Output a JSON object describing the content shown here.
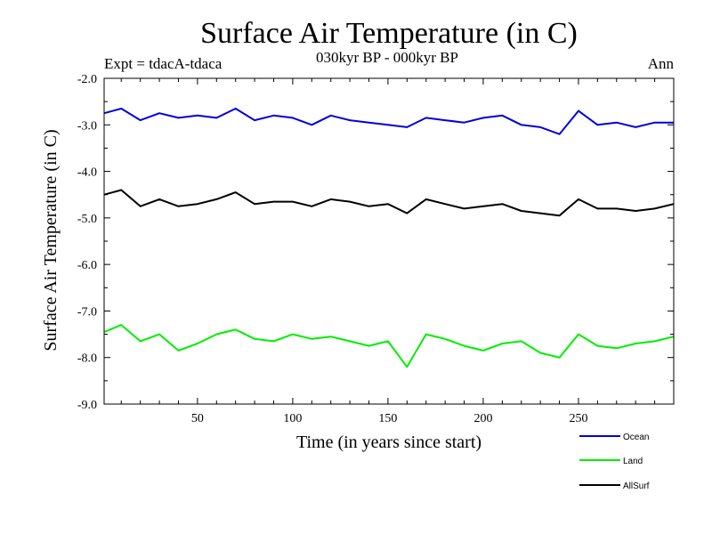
{
  "chart_data": {
    "type": "line",
    "title": "Surface Air Temperature (in C)",
    "subtitle": "030kyr BP - 000kyr BP",
    "experiment": "Expt = tdacA-tdaca",
    "season": "Ann",
    "xlabel": "Time (in years since start)",
    "ylabel": "Surface Air Temperature (in C)",
    "xlim": [
      1,
      300
    ],
    "ylim": [
      -9.0,
      -2.0
    ],
    "xticks": [
      50,
      100,
      150,
      200,
      250
    ],
    "xtick_labels": [
      "50",
      "100",
      "150",
      "200",
      "250"
    ],
    "yticks": [
      -9.0,
      -8.0,
      -7.0,
      -6.0,
      -5.0,
      -4.0,
      -3.0,
      -2.0
    ],
    "ytick_labels": [
      "-9.0",
      "-8.0",
      "-7.0",
      "-6.0",
      "-5.0",
      "-4.0",
      "-3.0",
      "-2.0"
    ],
    "legend_position": "bottom-right",
    "series": [
      {
        "name": "Ocean",
        "color": "#0000dd",
        "x": [
          1,
          10,
          20,
          30,
          40,
          50,
          60,
          70,
          80,
          90,
          100,
          110,
          120,
          130,
          140,
          150,
          160,
          170,
          180,
          190,
          200,
          210,
          220,
          230,
          240,
          250,
          260,
          270,
          280,
          290,
          300
        ],
        "values": [
          -2.75,
          -2.65,
          -2.9,
          -2.75,
          -2.85,
          -2.8,
          -2.85,
          -2.65,
          -2.9,
          -2.8,
          -2.85,
          -3.0,
          -2.8,
          -2.9,
          -2.95,
          -3.0,
          -3.05,
          -2.85,
          -2.9,
          -2.95,
          -2.85,
          -2.8,
          -3.0,
          -3.05,
          -3.2,
          -2.7,
          -3.0,
          -2.95,
          -3.05,
          -2.95,
          -2.95
        ]
      },
      {
        "name": "Land",
        "color": "#00ee00",
        "x": [
          1,
          10,
          20,
          30,
          40,
          50,
          60,
          70,
          80,
          90,
          100,
          110,
          120,
          130,
          140,
          150,
          160,
          170,
          180,
          190,
          200,
          210,
          220,
          230,
          240,
          250,
          260,
          270,
          280,
          290,
          300
        ],
        "values": [
          -7.45,
          -7.3,
          -7.65,
          -7.5,
          -7.85,
          -7.7,
          -7.5,
          -7.4,
          -7.6,
          -7.65,
          -7.5,
          -7.6,
          -7.55,
          -7.65,
          -7.75,
          -7.65,
          -8.2,
          -7.5,
          -7.6,
          -7.75,
          -7.85,
          -7.7,
          -7.65,
          -7.9,
          -8.0,
          -7.5,
          -7.75,
          -7.8,
          -7.7,
          -7.65,
          -7.55
        ]
      },
      {
        "name": "AllSurf",
        "color": "#000000",
        "x": [
          1,
          10,
          20,
          30,
          40,
          50,
          60,
          70,
          80,
          90,
          100,
          110,
          120,
          130,
          140,
          150,
          160,
          170,
          180,
          190,
          200,
          210,
          220,
          230,
          240,
          250,
          260,
          270,
          280,
          290,
          300
        ],
        "values": [
          -4.5,
          -4.4,
          -4.75,
          -4.6,
          -4.75,
          -4.7,
          -4.6,
          -4.45,
          -4.7,
          -4.65,
          -4.65,
          -4.75,
          -4.6,
          -4.65,
          -4.75,
          -4.7,
          -4.9,
          -4.6,
          -4.7,
          -4.8,
          -4.75,
          -4.7,
          -4.85,
          -4.9,
          -4.95,
          -4.6,
          -4.8,
          -4.8,
          -4.85,
          -4.8,
          -4.7
        ]
      }
    ]
  }
}
